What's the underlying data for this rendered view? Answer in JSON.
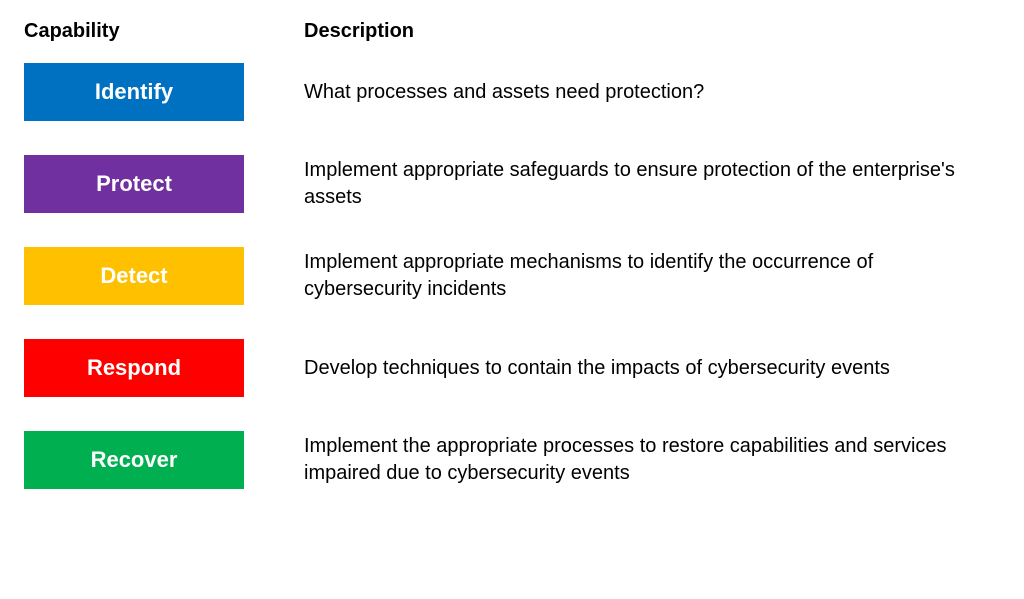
{
  "headers": {
    "capability": "Capability",
    "description": "Description"
  },
  "rows": [
    {
      "label": "Identify",
      "description": "What processes and assets need protection?",
      "bg_color": "#0070c0"
    },
    {
      "label": "Protect",
      "description": "Implement appropriate safeguards to ensure protection of the enterprise's assets",
      "bg_color": "#7030a0"
    },
    {
      "label": "Detect",
      "description": "Implement appropriate mechanisms to identify the occurrence of cybersecurity incidents",
      "bg_color": "#ffc000"
    },
    {
      "label": "Respond",
      "description": "Develop techniques to contain the impacts of cybersecurity events",
      "bg_color": "#ff0000"
    },
    {
      "label": "Recover",
      "description": "Implement the appropriate processes to restore capabilities and services impaired due to cybersecurity events",
      "bg_color": "#00b050"
    }
  ],
  "style": {
    "badge_text_color": "#ffffff",
    "badge_font_size": 22,
    "badge_font_weight": 700,
    "badge_width": 220,
    "badge_height": 58,
    "description_font_size": 20,
    "header_font_size": 20,
    "header_font_weight": 700,
    "background_color": "#ffffff",
    "text_color": "#000000",
    "row_gap": 34
  }
}
